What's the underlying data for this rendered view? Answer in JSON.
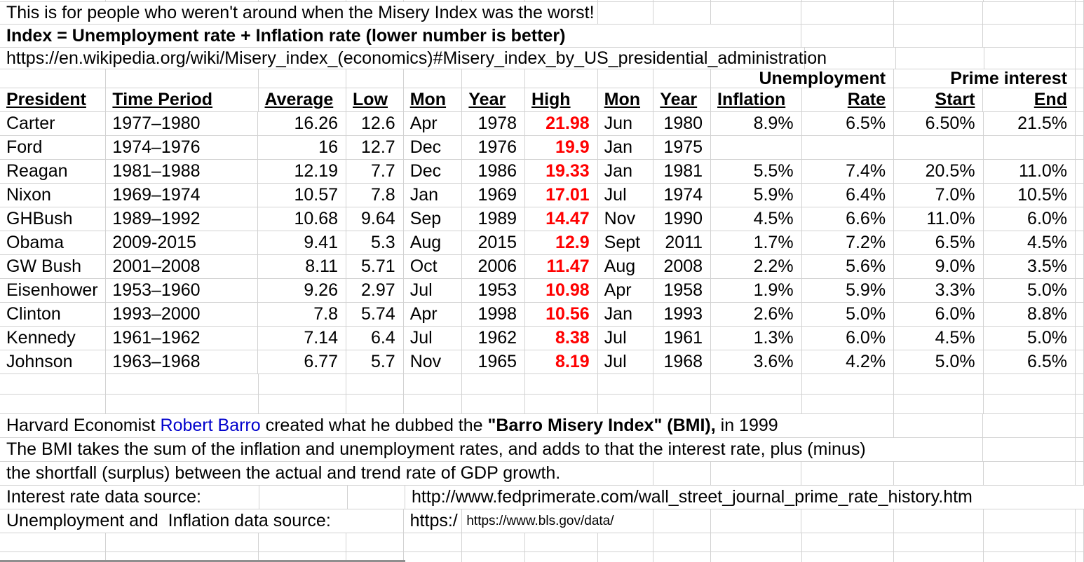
{
  "notes": {
    "line1": "This is for people who weren't around when the Misery Index was the worst!",
    "line2": "Index = Unemployment rate + Inflation rate (lower number is better)",
    "line3": "https://en.wikipedia.org/wiki/Misery_index_(economics)#Misery_index_by_US_presidential_administration"
  },
  "group_headers": {
    "unemployment": "Unemployment",
    "prime_interest": "Prime interest"
  },
  "columns": [
    "President",
    "Time Period",
    "Average",
    "Low",
    "Mon",
    "Year",
    "High",
    "Mon",
    "Year",
    "Inflation",
    "Rate",
    "Start",
    "End"
  ],
  "table": {
    "rows": [
      {
        "president": "Carter",
        "period": "1977–1980",
        "average": "16.26",
        "low": "12.6",
        "low_mon": "Apr",
        "low_year": "1978",
        "high": "21.98",
        "high_mon": "Jun",
        "high_year": "1980",
        "inflation": "8.9%",
        "unemp_rate": "6.5%",
        "prime_start": "6.50%",
        "prime_end": "21.5%"
      },
      {
        "president": "Ford",
        "period": "1974–1976",
        "average": "16",
        "low": "12.7",
        "low_mon": "Dec",
        "low_year": "1976",
        "high": "19.9",
        "high_mon": "Jan",
        "high_year": "1975",
        "inflation": "",
        "unemp_rate": "",
        "prime_start": "",
        "prime_end": ""
      },
      {
        "president": "Reagan",
        "period": "1981–1988",
        "average": "12.19",
        "low": "7.7",
        "low_mon": "Dec",
        "low_year": "1986",
        "high": "19.33",
        "high_mon": "Jan",
        "high_year": "1981",
        "inflation": "5.5%",
        "unemp_rate": "7.4%",
        "prime_start": "20.5%",
        "prime_end": "11.0%"
      },
      {
        "president": "Nixon",
        "period": "1969–1974",
        "average": "10.57",
        "low": "7.8",
        "low_mon": "Jan",
        "low_year": "1969",
        "high": "17.01",
        "high_mon": "Jul",
        "high_year": "1974",
        "inflation": "5.9%",
        "unemp_rate": "6.4%",
        "prime_start": "7.0%",
        "prime_end": "10.5%"
      },
      {
        "president": "GHBush",
        "period": "1989–1992",
        "average": "10.68",
        "low": "9.64",
        "low_mon": "Sep",
        "low_year": "1989",
        "high": "14.47",
        "high_mon": "Nov",
        "high_year": "1990",
        "inflation": "4.5%",
        "unemp_rate": "6.6%",
        "prime_start": "11.0%",
        "prime_end": "6.0%"
      },
      {
        "president": "Obama",
        "period": "2009-2015",
        "average": "9.41",
        "low": "5.3",
        "low_mon": "Aug",
        "low_year": "2015",
        "high": "12.9",
        "high_mon": "Sept",
        "high_year": "2011",
        "inflation": "1.7%",
        "unemp_rate": "7.2%",
        "prime_start": "6.5%",
        "prime_end": "4.5%"
      },
      {
        "president": "GW Bush",
        "period": "2001–2008",
        "average": "8.11",
        "low": "5.71",
        "low_mon": "Oct",
        "low_year": "2006",
        "high": "11.47",
        "high_mon": "Aug",
        "high_year": "2008",
        "inflation": "2.2%",
        "unemp_rate": "5.6%",
        "prime_start": "9.0%",
        "prime_end": "3.5%"
      },
      {
        "president": "Eisenhower",
        "period": "1953–1960",
        "average": "9.26",
        "low": "2.97",
        "low_mon": "Jul",
        "low_year": "1953",
        "high": "10.98",
        "high_mon": "Apr",
        "high_year": "1958",
        "inflation": "1.9%",
        "unemp_rate": "5.9%",
        "prime_start": "3.3%",
        "prime_end": "5.0%"
      },
      {
        "president": "Clinton",
        "period": "1993–2000",
        "average": "7.8",
        "low": "5.74",
        "low_mon": "Apr",
        "low_year": "1998",
        "high": "10.56",
        "high_mon": "Jan",
        "high_year": "1993",
        "inflation": "2.6%",
        "unemp_rate": "5.0%",
        "prime_start": "6.0%",
        "prime_end": "8.8%"
      },
      {
        "president": "Kennedy",
        "period": "1961–1962",
        "average": "7.14",
        "low": "6.4",
        "low_mon": "Jul",
        "low_year": "1962",
        "high": "8.38",
        "high_mon": "Jul",
        "high_year": "1961",
        "inflation": "1.3%",
        "unemp_rate": "6.0%",
        "prime_start": "4.5%",
        "prime_end": "5.0%"
      },
      {
        "president": "Johnson",
        "period": "1963–1968",
        "average": "6.77",
        "low": "5.7",
        "low_mon": "Nov",
        "low_year": "1965",
        "high": "8.19",
        "high_mon": "Jul",
        "high_year": "1968",
        "inflation": "3.6%",
        "unemp_rate": "4.2%",
        "prime_start": "5.0%",
        "prime_end": "6.5%"
      }
    ]
  },
  "footer": {
    "harvard": {
      "s1": "Harvard Economist ",
      "s2": "Robert Barro",
      "s3": " created what he dubbed the ",
      "s4": "\"Barro Misery Index\" (BMI),",
      "s5": " in 1999"
    },
    "bmi_line2": "The BMI takes the sum of the inflation and unemployment rates, and adds to that the interest rate, plus (minus)",
    "bmi_line3": "the shortfall (surplus) between the actual and trend rate of GDP growth.",
    "interest_label": "Interest rate data source:",
    "interest_url": "http://www.fedprimerate.com/wall_street_journal_prime_rate_history.htm",
    "unemp_label": "Unemployment and  Inflation data source:",
    "unemp_url_clipped": "https:/",
    "unemp_url_small": "https://www.bls.gov/data/"
  },
  "colors": {
    "high_red": "#ff0000",
    "link_blue": "#0000cc",
    "gridline": "#d2d2d2"
  }
}
